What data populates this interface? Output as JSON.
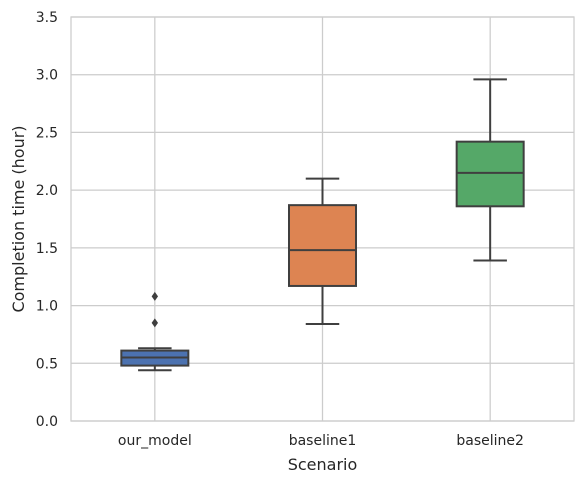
{
  "chart_data": {
    "type": "box",
    "xlabel": "Scenario",
    "ylabel": "Completion time (hour)",
    "categories": [
      "our_model",
      "baseline1",
      "baseline2"
    ],
    "ylim": [
      0,
      3.5
    ],
    "yticks": [
      "0.0",
      "0.5",
      "1.0",
      "1.5",
      "2.0",
      "2.5",
      "3.0",
      "3.5"
    ],
    "grid": true,
    "boxes": [
      {
        "category": "our_model",
        "whislo": 0.44,
        "q1": 0.48,
        "med": 0.55,
        "q3": 0.61,
        "whishi": 0.63,
        "fliers": [
          0.85,
          1.08
        ],
        "color": "#4c72b0"
      },
      {
        "category": "baseline1",
        "whislo": 0.84,
        "q1": 1.17,
        "med": 1.48,
        "q3": 1.87,
        "whishi": 2.1,
        "fliers": [],
        "color": "#dd8452"
      },
      {
        "category": "baseline2",
        "whislo": 1.39,
        "q1": 1.86,
        "med": 2.15,
        "q3": 2.42,
        "whishi": 2.96,
        "fliers": [],
        "color": "#55a868"
      }
    ]
  }
}
